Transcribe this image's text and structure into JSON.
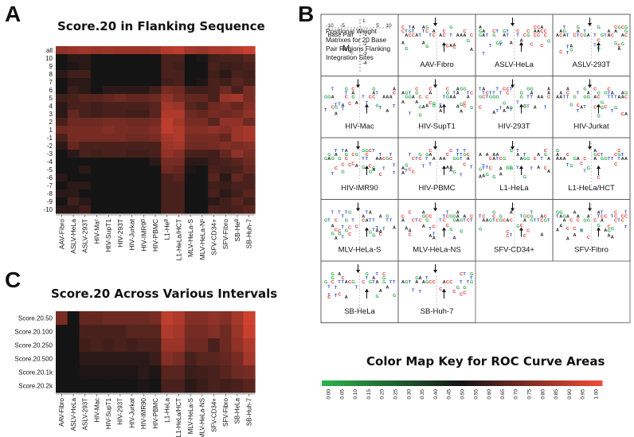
{
  "panels": {
    "a_letter": "A",
    "b_letter": "B",
    "c_letter": "C",
    "a_title": "Score.20 in Flanking Sequence",
    "c_title": "Score.20 Across Various Intervals",
    "key_title": "Color Map Key for ROC Curve Areas"
  },
  "colors": {
    "low": "#2db34a",
    "mid": "#141414",
    "high": "#f24a36"
  },
  "chart_data": [
    {
      "type": "heatmap",
      "title": "Score.20 in Flanking Sequence",
      "columns": [
        "AAV-Fibro",
        "ASLV-HeLa",
        "ASLV-293T",
        "HIV-Maᶜ",
        "HIV-SupT1",
        "HIV-293T",
        "HIV-Jurkat",
        "HIV-IMR9ᴰ",
        "HIV-PBMC",
        "L1-Heᴮ",
        "L1-HeLa/HCT",
        "MLV-HeLa-S",
        "MLV-HeLa-Nˢ",
        "SFV-CD34+",
        "SFV-Fibro",
        "SB-Heᴮ",
        "SB-Huh-7"
      ],
      "rows": [
        "all",
        "10",
        "9",
        "8",
        "7",
        "6",
        "5",
        "4",
        "3",
        "2",
        "1",
        "-1",
        "-2",
        "-3",
        "-4",
        "-5",
        "-6",
        "-7",
        "-8",
        "-9",
        "-10"
      ],
      "values": [
        [
          0.78,
          0.8,
          0.82,
          0.8,
          0.81,
          0.8,
          0.8,
          0.8,
          0.81,
          0.86,
          0.88,
          0.82,
          0.8,
          0.83,
          0.84,
          0.87,
          0.9
        ],
        [
          0.5,
          0.55,
          0.55,
          0.5,
          0.5,
          0.5,
          0.5,
          0.5,
          0.5,
          0.62,
          0.62,
          0.5,
          0.52,
          0.6,
          0.62,
          0.62,
          0.65
        ],
        [
          0.5,
          0.52,
          0.55,
          0.5,
          0.5,
          0.5,
          0.5,
          0.5,
          0.5,
          0.62,
          0.6,
          0.5,
          0.5,
          0.62,
          0.58,
          0.6,
          0.62
        ],
        [
          0.55,
          0.6,
          0.6,
          0.5,
          0.5,
          0.5,
          0.5,
          0.5,
          0.5,
          0.62,
          0.62,
          0.5,
          0.5,
          0.6,
          0.55,
          0.62,
          0.6
        ],
        [
          0.5,
          0.55,
          0.55,
          0.5,
          0.5,
          0.5,
          0.5,
          0.5,
          0.5,
          0.6,
          0.62,
          0.5,
          0.52,
          0.62,
          0.6,
          0.65,
          0.62
        ],
        [
          0.5,
          0.58,
          0.55,
          0.5,
          0.55,
          0.55,
          0.55,
          0.55,
          0.6,
          0.72,
          0.7,
          0.6,
          0.6,
          0.62,
          0.7,
          0.62,
          0.72
        ],
        [
          0.6,
          0.62,
          0.65,
          0.65,
          0.68,
          0.7,
          0.68,
          0.68,
          0.7,
          0.78,
          0.72,
          0.68,
          0.68,
          0.62,
          0.8,
          0.82,
          0.72
        ],
        [
          0.55,
          0.62,
          0.62,
          0.6,
          0.62,
          0.62,
          0.62,
          0.62,
          0.65,
          0.82,
          0.8,
          0.65,
          0.62,
          0.7,
          0.72,
          0.68,
          0.75
        ],
        [
          0.55,
          0.68,
          0.62,
          0.6,
          0.62,
          0.62,
          0.6,
          0.6,
          0.65,
          0.85,
          0.85,
          0.7,
          0.68,
          0.72,
          0.7,
          0.72,
          0.78
        ],
        [
          0.62,
          0.7,
          0.7,
          0.7,
          0.72,
          0.72,
          0.7,
          0.7,
          0.72,
          0.88,
          0.82,
          0.72,
          0.72,
          0.65,
          0.78,
          0.78,
          0.7
        ],
        [
          0.7,
          0.72,
          0.72,
          0.72,
          0.75,
          0.72,
          0.72,
          0.72,
          0.75,
          0.88,
          0.85,
          0.75,
          0.75,
          0.78,
          0.75,
          0.8,
          0.82
        ],
        [
          0.62,
          0.72,
          0.72,
          0.72,
          0.72,
          0.72,
          0.7,
          0.7,
          0.72,
          0.82,
          0.85,
          0.72,
          0.72,
          0.72,
          0.68,
          0.8,
          0.82
        ],
        [
          0.55,
          0.68,
          0.62,
          0.62,
          0.62,
          0.62,
          0.62,
          0.62,
          0.62,
          0.8,
          0.82,
          0.7,
          0.7,
          0.72,
          0.75,
          0.72,
          0.75
        ],
        [
          0.5,
          0.55,
          0.62,
          0.6,
          0.62,
          0.62,
          0.6,
          0.6,
          0.62,
          0.78,
          0.75,
          0.62,
          0.62,
          0.6,
          0.68,
          0.78,
          0.72
        ],
        [
          0.5,
          0.5,
          0.5,
          0.5,
          0.5,
          0.5,
          0.5,
          0.5,
          0.55,
          0.72,
          0.72,
          0.55,
          0.55,
          0.6,
          0.62,
          0.65,
          0.7
        ],
        [
          0.5,
          0.5,
          0.55,
          0.5,
          0.5,
          0.5,
          0.5,
          0.5,
          0.5,
          0.7,
          0.68,
          0.52,
          0.5,
          0.62,
          0.6,
          0.62,
          0.68
        ],
        [
          0.55,
          0.5,
          0.5,
          0.5,
          0.5,
          0.5,
          0.5,
          0.5,
          0.5,
          0.62,
          0.65,
          0.5,
          0.5,
          0.65,
          0.55,
          0.68,
          0.62
        ],
        [
          0.5,
          0.55,
          0.55,
          0.5,
          0.5,
          0.5,
          0.5,
          0.5,
          0.5,
          0.62,
          0.62,
          0.5,
          0.5,
          0.6,
          0.58,
          0.62,
          0.62
        ],
        [
          0.55,
          0.55,
          0.5,
          0.5,
          0.5,
          0.5,
          0.5,
          0.5,
          0.5,
          0.62,
          0.62,
          0.5,
          0.5,
          0.62,
          0.55,
          0.6,
          0.65
        ],
        [
          0.5,
          0.6,
          0.55,
          0.5,
          0.5,
          0.5,
          0.5,
          0.5,
          0.5,
          0.62,
          0.62,
          0.5,
          0.5,
          0.55,
          0.6,
          0.65,
          0.6
        ],
        [
          0.55,
          0.55,
          0.6,
          0.5,
          0.5,
          0.5,
          0.5,
          0.5,
          0.5,
          0.62,
          0.62,
          0.5,
          0.5,
          0.62,
          0.6,
          0.62,
          0.65
        ]
      ]
    },
    {
      "type": "heatmap",
      "title": "Score.20 Across Various Intervals",
      "columns": [
        "AAV-Fibro",
        "ASLV-HeLa",
        "ASLV-293T",
        "HIV-Mac",
        "HIV-SupT1",
        "HIV-293T",
        "HIV-Jurkat",
        "HIV-IMR90",
        "HIV-PBMC",
        "L1-HeLa",
        "L1-HeLa/HCT",
        "MLV-HeLa-S",
        "MLV-HeLa-NS",
        "SFV-CD34+",
        "SFV-Fibro",
        "SB-HeLa",
        "SB-Huh-7"
      ],
      "rows": [
        "Score.20.50",
        "Score.20.100",
        "Score.20.250",
        "Score.20.500",
        "Score.20.1k",
        "Score.20.2k"
      ],
      "values": [
        [
          0.72,
          0.5,
          0.68,
          0.68,
          0.7,
          0.7,
          0.7,
          0.7,
          0.72,
          0.88,
          0.85,
          0.75,
          0.75,
          0.78,
          0.75,
          0.82,
          0.92
        ],
        [
          0.5,
          0.5,
          0.62,
          0.62,
          0.62,
          0.62,
          0.65,
          0.65,
          0.65,
          0.85,
          0.82,
          0.72,
          0.72,
          0.75,
          0.7,
          0.8,
          0.9
        ],
        [
          0.5,
          0.5,
          0.6,
          0.62,
          0.6,
          0.62,
          0.6,
          0.62,
          0.62,
          0.8,
          0.8,
          0.7,
          0.7,
          0.62,
          0.7,
          0.78,
          0.85
        ],
        [
          0.5,
          0.5,
          0.55,
          0.55,
          0.55,
          0.55,
          0.55,
          0.55,
          0.58,
          0.75,
          0.72,
          0.62,
          0.65,
          0.65,
          0.68,
          0.72,
          0.82
        ],
        [
          0.5,
          0.5,
          0.52,
          0.52,
          0.52,
          0.52,
          0.52,
          0.55,
          0.52,
          0.65,
          0.65,
          0.58,
          0.6,
          0.62,
          0.65,
          0.7,
          0.72
        ],
        [
          0.5,
          0.5,
          0.5,
          0.5,
          0.5,
          0.5,
          0.5,
          0.52,
          0.5,
          0.62,
          0.62,
          0.55,
          0.58,
          0.62,
          0.6,
          0.62,
          0.65
        ]
      ]
    },
    {
      "type": "heatmap",
      "title": "Color Map Key for ROC Curve Areas",
      "ticks": [
        "0.00",
        "0.05",
        "0.10",
        "0.15",
        "0.20",
        "0.25",
        "0.30",
        "0.35",
        "0.40",
        "0.45",
        "0.50",
        "0.55",
        "0.60",
        "0.65",
        "0.70",
        "0.75",
        "0.80",
        "0.85",
        "0.90",
        "0.95",
        "1.00"
      ],
      "range": [
        0,
        1
      ]
    }
  ],
  "logo_panel": {
    "info_text": [
      "Positional Weight",
      "Matrixes for 20 Base",
      "Pair Regions Flanking",
      "Integration Sites"
    ],
    "axis_label": "Base Pair",
    "x_ticks": [
      "-10",
      "-5",
      "5",
      "10"
    ],
    "y_ticks": [
      "1",
      "-1",
      "-2",
      "-3",
      "-4"
    ],
    "m_label": "M",
    "m_sub": "ij",
    "cells": [
      "AAV-Fibro",
      "ASLV-HeLa",
      "ASLV-293T",
      "HIV-Mac",
      "HIV-SupT1",
      "HIV-293T",
      "HIV-Jurkat",
      "HIV-IMR90",
      "HIV-PBMC",
      "L1-HeLa",
      "L1-HeLa/HCT",
      "MLV-HeLa-S",
      "MLV-HeLa-NS",
      "SFV-CD34+",
      "SFV-Fibro",
      "SB-HeLa",
      "SB-Huh-7"
    ],
    "letter_colors": {
      "A": "#1a1a1a",
      "C": "#e0302a",
      "G": "#2aa84a",
      "T": "#2a4fd0"
    }
  }
}
